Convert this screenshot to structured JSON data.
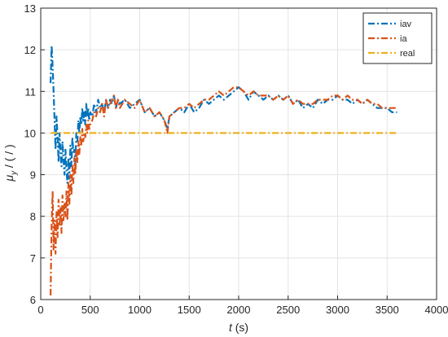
{
  "chart_data": {
    "type": "line",
    "title": "",
    "xlabel": {
      "italic": "t",
      "rest": " (s)"
    },
    "ylabel": {
      "symbol": "μ",
      "subscript": "y",
      "rest": "  / ( / )"
    },
    "xlim": [
      0,
      4000
    ],
    "ylim": [
      6,
      13
    ],
    "xticks": [
      0,
      500,
      1000,
      1500,
      2000,
      2500,
      3000,
      3500,
      4000
    ],
    "yticks": [
      6,
      7,
      8,
      9,
      10,
      11,
      12,
      13
    ],
    "grid": true,
    "legend_position": "top-right",
    "series": [
      {
        "name": "iav",
        "color": "#0072BD",
        "style": "dash-dot",
        "x": [
          100,
          110,
          120,
          130,
          140,
          150,
          160,
          170,
          180,
          190,
          200,
          210,
          220,
          230,
          240,
          250,
          260,
          270,
          280,
          290,
          300,
          310,
          320,
          330,
          340,
          350,
          360,
          370,
          380,
          390,
          400,
          410,
          420,
          430,
          440,
          450,
          460,
          470,
          480,
          490,
          500,
          520,
          540,
          560,
          580,
          600,
          620,
          640,
          660,
          680,
          700,
          720,
          740,
          760,
          780,
          800,
          850,
          900,
          950,
          1000,
          1050,
          1100,
          1150,
          1200,
          1250,
          1280,
          1300,
          1350,
          1400,
          1450,
          1500,
          1550,
          1600,
          1650,
          1700,
          1750,
          1800,
          1850,
          1900,
          1950,
          2000,
          2050,
          2100,
          2150,
          2200,
          2250,
          2300,
          2350,
          2400,
          2450,
          2500,
          2550,
          2600,
          2650,
          2700,
          2750,
          2800,
          2850,
          2900,
          2950,
          3000,
          3050,
          3100,
          3150,
          3200,
          3250,
          3300,
          3350,
          3400,
          3450,
          3500,
          3550,
          3600
        ],
        "y": [
          11.2,
          12.1,
          11.6,
          11.0,
          10.3,
          9.6,
          10.4,
          9.9,
          9.3,
          10.0,
          9.5,
          9.2,
          9.8,
          9.4,
          9.0,
          9.6,
          9.1,
          8.8,
          9.4,
          8.9,
          9.7,
          9.2,
          9.9,
          9.5,
          9.6,
          9.3,
          10.0,
          9.8,
          10.3,
          10.0,
          10.4,
          10.2,
          10.6,
          10.3,
          10.5,
          10.2,
          10.7,
          10.4,
          10.6,
          10.3,
          10.5,
          10.4,
          10.7,
          10.5,
          10.8,
          10.6,
          10.7,
          10.5,
          10.8,
          10.6,
          10.8,
          10.7,
          10.9,
          10.6,
          10.8,
          10.7,
          10.8,
          10.6,
          10.7,
          10.8,
          10.5,
          10.6,
          10.4,
          10.5,
          10.3,
          10.1,
          10.4,
          10.5,
          10.6,
          10.5,
          10.7,
          10.5,
          10.6,
          10.8,
          10.7,
          10.8,
          10.9,
          10.8,
          10.9,
          11.0,
          11.1,
          11.0,
          10.8,
          11.0,
          10.9,
          10.8,
          10.9,
          10.8,
          10.9,
          10.8,
          10.9,
          10.7,
          10.8,
          10.6,
          10.7,
          10.6,
          10.8,
          10.7,
          10.8,
          10.8,
          10.9,
          10.8,
          10.8,
          10.7,
          10.8,
          10.7,
          10.8,
          10.7,
          10.6,
          10.6,
          10.6,
          10.5,
          10.5
        ]
      },
      {
        "name": "ia",
        "color": "#D95319",
        "style": "dash-dot",
        "x": [
          100,
          110,
          120,
          130,
          140,
          150,
          160,
          170,
          180,
          190,
          200,
          210,
          220,
          230,
          240,
          250,
          260,
          270,
          280,
          290,
          300,
          310,
          320,
          330,
          340,
          350,
          360,
          370,
          380,
          390,
          400,
          410,
          420,
          430,
          440,
          450,
          460,
          470,
          480,
          490,
          500,
          520,
          540,
          560,
          580,
          600,
          620,
          640,
          660,
          680,
          700,
          720,
          740,
          760,
          780,
          800,
          850,
          900,
          950,
          1000,
          1050,
          1100,
          1150,
          1200,
          1250,
          1280,
          1300,
          1350,
          1400,
          1450,
          1500,
          1550,
          1600,
          1650,
          1700,
          1750,
          1800,
          1850,
          1900,
          1950,
          2000,
          2050,
          2100,
          2150,
          2200,
          2250,
          2300,
          2350,
          2400,
          2450,
          2500,
          2550,
          2600,
          2650,
          2700,
          2750,
          2800,
          2850,
          2900,
          2950,
          3000,
          3050,
          3100,
          3150,
          3200,
          3250,
          3300,
          3350,
          3400,
          3450,
          3500,
          3550,
          3600
        ],
        "y": [
          6.1,
          7.8,
          8.6,
          7.2,
          7.9,
          7.1,
          8.1,
          7.5,
          8.4,
          7.8,
          8.2,
          7.6,
          8.5,
          7.9,
          8.3,
          8.0,
          8.6,
          7.9,
          8.8,
          8.3,
          9.0,
          8.5,
          9.2,
          8.8,
          9.4,
          9.0,
          9.6,
          9.3,
          9.8,
          9.5,
          9.9,
          9.7,
          10.1,
          9.8,
          10.0,
          9.9,
          10.2,
          10.0,
          10.3,
          10.1,
          10.2,
          10.3,
          10.5,
          10.4,
          10.6,
          10.5,
          10.7,
          10.4,
          10.8,
          10.6,
          10.7,
          10.8,
          10.9,
          10.6,
          10.8,
          10.6,
          10.8,
          10.7,
          10.6,
          10.8,
          10.5,
          10.6,
          10.4,
          10.5,
          10.3,
          10.0,
          10.4,
          10.5,
          10.6,
          10.6,
          10.7,
          10.6,
          10.7,
          10.8,
          10.8,
          10.9,
          11.0,
          10.9,
          11.0,
          11.1,
          11.1,
          11.0,
          10.9,
          11.0,
          10.9,
          10.9,
          10.9,
          10.8,
          10.9,
          10.8,
          10.9,
          10.7,
          10.8,
          10.7,
          10.7,
          10.7,
          10.8,
          10.8,
          10.8,
          10.9,
          10.9,
          10.8,
          10.9,
          10.8,
          10.8,
          10.7,
          10.8,
          10.7,
          10.7,
          10.6,
          10.6,
          10.6,
          10.6
        ]
      },
      {
        "name": "real",
        "color": "#EDB120",
        "style": "dash-dot",
        "x": [
          100,
          3600
        ],
        "y": [
          10,
          10
        ]
      }
    ]
  }
}
